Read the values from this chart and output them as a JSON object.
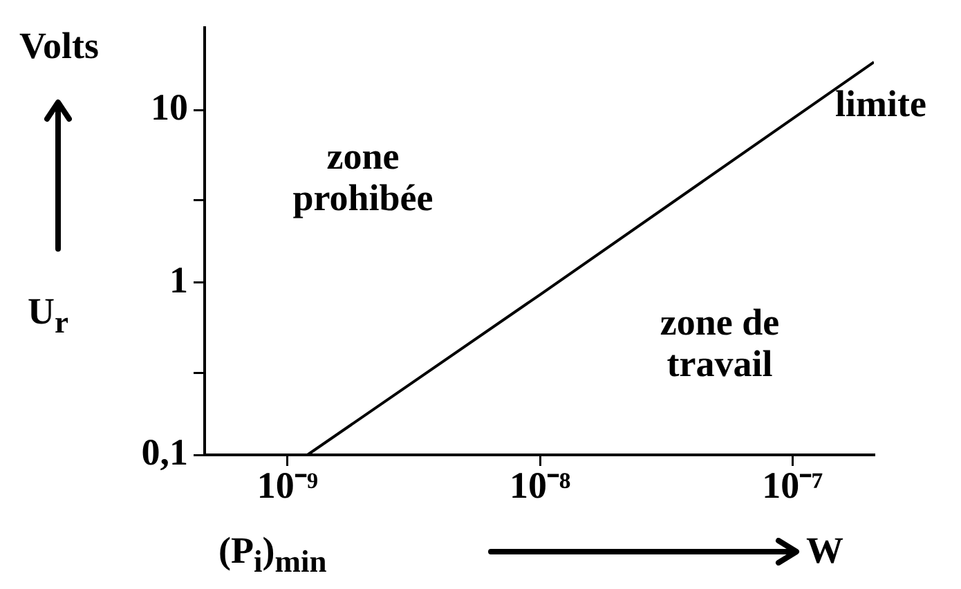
{
  "chart_data": {
    "type": "line",
    "ylabel": "Volts",
    "xlabel": "(P$_{i}$)$_{min}$",
    "annotations": [
      "zone prohibée",
      "zone de travail",
      "limite",
      "U$_{r}$",
      "W"
    ],
    "log": "xy",
    "x": [
      1.2e-09,
      1e-08,
      2.1e-07
    ],
    "series": [
      {
        "color": "#000000",
        "values": [
          0.1,
          0.85,
          19
        ]
      }
    ],
    "xlim": [
      4.7e-10,
      2.1e-07
    ],
    "xticks": [
      {
        "value": 1e-09,
        "label": "10⁻⁹"
      },
      {
        "value": 1e-08,
        "label": "10⁻⁸"
      },
      {
        "value": 1e-07,
        "label": "10⁻⁷"
      }
    ],
    "ylim": [
      0.1,
      30
    ],
    "yticks": [
      {
        "value": 0.1,
        "label": "0,1"
      },
      {
        "value": 0.3,
        "label": null
      },
      {
        "value": 1,
        "label": "1"
      },
      {
        "value": 3,
        "label": null
      },
      10
    ],
    "grid": false,
    "marker": "none",
    "line_style": "solid"
  }
}
